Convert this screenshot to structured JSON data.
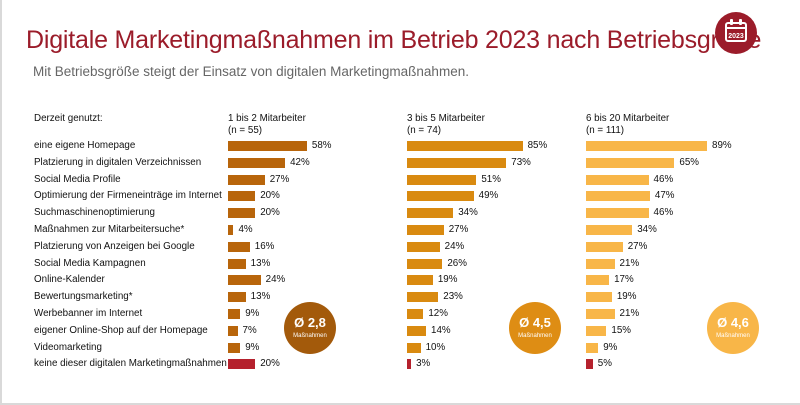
{
  "title": "Digitale Marketingmaßnahmen im Betrieb 2023 nach Betriebsgröße",
  "subtitle": "Mit Betriebsgröße steigt der Einsatz von digitalen Marketingmaßnahmen.",
  "badge_year": "2023",
  "row_header": "Derzeit genutzt:",
  "colors": {
    "title": "#9b1c2a",
    "c1": "#b8650b",
    "c2": "#d98a10",
    "c3": "#f8b648",
    "none": "#b5212d",
    "avg1": "#a35a0b",
    "avg2": "#de8d14",
    "avg3": "#f8b648"
  },
  "chart_data": {
    "type": "bar",
    "orientation": "horizontal",
    "unit": "%",
    "categories": [
      "eine eigene Homepage",
      "Platzierung in digitalen Verzeichnissen",
      "Social Media Profile",
      "Optimierung der Firmeneinträge im Internet",
      "Suchmaschinenoptimierung",
      "Maßnahmen zur Mitarbeitersuche*",
      "Platzierung von Anzeigen bei Google",
      "Social Media Kampagnen",
      "Online-Kalender",
      "Bewertungsmarketing*",
      "Werbebanner im Internet",
      "eigener Online-Shop auf der Homepage",
      "Videomarketing",
      "keine dieser digitalen Marketingmaßnahmen"
    ],
    "series": [
      {
        "name": "1 bis 2 Mitarbeiter",
        "n": "(n = 55)",
        "values": [
          58,
          42,
          27,
          20,
          20,
          4,
          16,
          13,
          24,
          13,
          9,
          7,
          9,
          20
        ],
        "average": "Ø 2,8",
        "average_label": "Maßnahmen"
      },
      {
        "name": "3 bis 5 Mitarbeiter",
        "n": "(n = 74)",
        "values": [
          85,
          73,
          51,
          49,
          34,
          27,
          24,
          26,
          19,
          23,
          12,
          14,
          10,
          3
        ],
        "average": "Ø 4,5",
        "average_label": "Maßnahmen"
      },
      {
        "name": "6 bis 20 Mitarbeiter",
        "n": "(n = 111)",
        "values": [
          89,
          65,
          46,
          47,
          46,
          34,
          27,
          21,
          17,
          19,
          21,
          15,
          9,
          5
        ],
        "average": "Ø 4,6",
        "average_label": "Maßnahmen"
      }
    ],
    "xlim": [
      0,
      100
    ],
    "grid": false,
    "legend": "none"
  }
}
